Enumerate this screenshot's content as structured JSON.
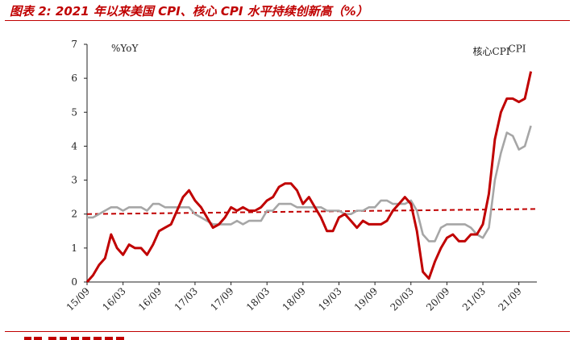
{
  "figure": {
    "title": "图表 2:  2021 年以来美国 CPI、核心 CPI 水平持续创新高（%）"
  },
  "chart_data": {
    "type": "line",
    "title": "",
    "unit_label": "%YoY",
    "xlabel": "",
    "ylabel": "",
    "ylim": [
      0,
      7
    ],
    "yticks": [
      0,
      1,
      2,
      3,
      4,
      5,
      6,
      7
    ],
    "x_start": "2015-09",
    "x_end": "2021-12",
    "xtick_labels": [
      "15/09",
      "16/03",
      "16/09",
      "17/03",
      "17/09",
      "18/03",
      "18/09",
      "19/03",
      "19/09",
      "20/03",
      "20/09",
      "21/03",
      "21/09"
    ],
    "grid": false,
    "series": [
      {
        "name": "CPI",
        "color": "#c00000",
        "values": [
          0.0,
          0.2,
          0.5,
          0.7,
          1.4,
          1.0,
          0.8,
          1.1,
          1.0,
          1.0,
          0.8,
          1.1,
          1.5,
          1.6,
          1.7,
          2.1,
          2.5,
          2.7,
          2.4,
          2.2,
          1.9,
          1.6,
          1.7,
          1.9,
          2.2,
          2.1,
          2.2,
          2.1,
          2.1,
          2.2,
          2.4,
          2.5,
          2.8,
          2.9,
          2.9,
          2.7,
          2.3,
          2.5,
          2.2,
          1.9,
          1.5,
          1.5,
          1.9,
          2.0,
          1.8,
          1.6,
          1.8,
          1.7,
          1.7,
          1.7,
          1.8,
          2.1,
          2.3,
          2.5,
          2.3,
          1.5,
          0.3,
          0.1,
          0.6,
          1.0,
          1.3,
          1.4,
          1.2,
          1.2,
          1.4,
          1.4,
          1.7,
          2.6,
          4.2,
          5.0,
          5.4,
          5.4,
          5.3,
          5.4,
          6.2
        ]
      },
      {
        "name": "核心CPI",
        "color": "#a6a6a6",
        "values": [
          1.9,
          1.9,
          2.0,
          2.1,
          2.2,
          2.2,
          2.1,
          2.2,
          2.2,
          2.2,
          2.1,
          2.3,
          2.3,
          2.2,
          2.2,
          2.2,
          2.2,
          2.2,
          2.0,
          1.9,
          1.8,
          1.7,
          1.7,
          1.7,
          1.7,
          1.8,
          1.7,
          1.8,
          1.8,
          1.8,
          2.1,
          2.1,
          2.3,
          2.3,
          2.3,
          2.2,
          2.2,
          2.2,
          2.2,
          2.2,
          2.1,
          2.1,
          2.1,
          2.0,
          2.0,
          2.1,
          2.1,
          2.2,
          2.2,
          2.4,
          2.4,
          2.3,
          2.3,
          2.3,
          2.4,
          2.1,
          1.4,
          1.2,
          1.2,
          1.6,
          1.7,
          1.7,
          1.7,
          1.7,
          1.6,
          1.4,
          1.3,
          1.6,
          3.0,
          3.8,
          4.4,
          4.3,
          3.9,
          4.0,
          4.6
        ]
      }
    ],
    "annotations": [
      {
        "text": "CPI",
        "series": "CPI"
      },
      {
        "text": "核心CPI",
        "series": "核心CPI"
      }
    ],
    "reference_line": {
      "style": "dashed",
      "color": "#c00000",
      "from": {
        "x": "2015-09",
        "y": 2.0
      },
      "to": {
        "x": "2021-12",
        "y": 2.15
      }
    }
  }
}
